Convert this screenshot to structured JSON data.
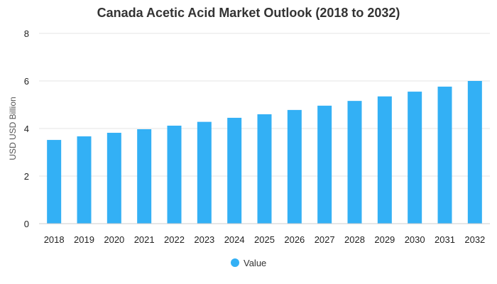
{
  "chart_data": {
    "type": "bar",
    "title": "Canada Acetic Acid Market Outlook (2018 to 2032)",
    "xlabel": "",
    "ylabel": "USD USD Billion",
    "categories": [
      "2018",
      "2019",
      "2020",
      "2021",
      "2022",
      "2023",
      "2024",
      "2025",
      "2026",
      "2027",
      "2028",
      "2029",
      "2030",
      "2031",
      "2032"
    ],
    "series": [
      {
        "name": "Value",
        "color": "#33b0f5",
        "values": [
          3.52,
          3.67,
          3.82,
          3.97,
          4.12,
          4.28,
          4.45,
          4.6,
          4.78,
          4.96,
          5.16,
          5.35,
          5.55,
          5.76,
          6.0
        ]
      }
    ],
    "ylim": [
      0,
      8
    ],
    "yticks": [
      0,
      2,
      4,
      6,
      8
    ],
    "grid": true,
    "legend_position": "bottom-center"
  }
}
